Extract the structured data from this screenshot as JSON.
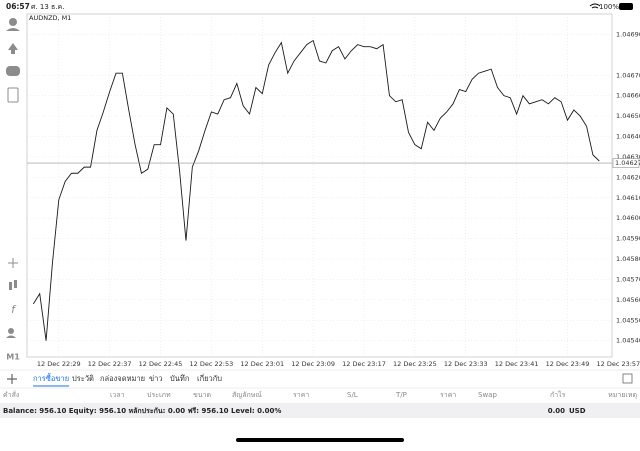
{
  "status_bar": {
    "time": "06:57",
    "date": "ศ. 13 ธ.ค.",
    "battery": "100%"
  },
  "chart_data": {
    "type": "line",
    "title": "AUDNZD, M1",
    "color": "#1a1a1a",
    "grid": true,
    "x": [
      "12 Dec 22:25",
      "12 Dec 22:26",
      "12 Dec 22:27",
      "12 Dec 22:28",
      "12 Dec 22:29",
      "12 Dec 22:30",
      "12 Dec 22:31",
      "12 Dec 22:32",
      "12 Dec 22:33",
      "12 Dec 22:34",
      "12 Dec 22:35",
      "12 Dec 22:36",
      "12 Dec 22:37",
      "12 Dec 22:38",
      "12 Dec 22:39",
      "12 Dec 22:40",
      "12 Dec 22:41",
      "12 Dec 22:42",
      "12 Dec 22:43",
      "12 Dec 22:44",
      "12 Dec 22:45",
      "12 Dec 22:46",
      "12 Dec 22:47",
      "12 Dec 22:48",
      "12 Dec 22:49",
      "12 Dec 22:50",
      "12 Dec 22:51",
      "12 Dec 22:52",
      "12 Dec 22:53",
      "12 Dec 22:54",
      "12 Dec 22:55",
      "12 Dec 22:56",
      "12 Dec 22:57",
      "12 Dec 22:58",
      "12 Dec 22:59",
      "12 Dec 23:00",
      "12 Dec 23:01",
      "12 Dec 23:02",
      "12 Dec 23:03",
      "12 Dec 23:04",
      "12 Dec 23:05",
      "12 Dec 23:06",
      "12 Dec 23:07",
      "12 Dec 23:08",
      "12 Dec 23:09",
      "12 Dec 23:10",
      "12 Dec 23:11",
      "12 Dec 23:12",
      "12 Dec 23:13",
      "12 Dec 23:14",
      "12 Dec 23:15",
      "12 Dec 23:16",
      "12 Dec 23:17",
      "12 Dec 23:18",
      "12 Dec 23:19",
      "12 Dec 23:20",
      "12 Dec 23:21",
      "12 Dec 23:22",
      "12 Dec 23:23",
      "12 Dec 23:24",
      "12 Dec 23:25",
      "12 Dec 23:26",
      "12 Dec 23:27",
      "12 Dec 23:28",
      "12 Dec 23:29",
      "12 Dec 23:30",
      "12 Dec 23:31",
      "12 Dec 23:32",
      "12 Dec 23:33",
      "12 Dec 23:34",
      "12 Dec 23:35",
      "12 Dec 23:36",
      "12 Dec 23:37",
      "12 Dec 23:38",
      "12 Dec 23:39",
      "12 Dec 23:40",
      "12 Dec 23:41",
      "12 Dec 23:42",
      "12 Dec 23:43",
      "12 Dec 23:44",
      "12 Dec 23:45",
      "12 Dec 23:46",
      "12 Dec 23:47",
      "12 Dec 23:48",
      "12 Dec 23:49",
      "12 Dec 23:50",
      "12 Dec 23:51",
      "12 Dec 23:52",
      "12 Dec 23:53",
      "12 Dec 23:54"
    ],
    "values": [
      1.04558,
      1.04563,
      1.0454,
      1.04578,
      1.04609,
      1.04618,
      1.04622,
      1.04622,
      1.04625,
      1.04625,
      1.04643,
      1.04652,
      1.04662,
      1.04671,
      1.04671,
      1.04653,
      1.04636,
      1.04622,
      1.04624,
      1.04636,
      1.04636,
      1.04654,
      1.04651,
      1.04623,
      1.04589,
      1.04625,
      1.04633,
      1.04643,
      1.04652,
      1.04651,
      1.04658,
      1.04659,
      1.04666,
      1.04655,
      1.04651,
      1.04664,
      1.04661,
      1.04675,
      1.04681,
      1.04686,
      1.04671,
      1.04677,
      1.04681,
      1.04685,
      1.04687,
      1.04677,
      1.04676,
      1.04682,
      1.04684,
      1.04678,
      1.04682,
      1.04685,
      1.04684,
      1.04684,
      1.04683,
      1.04685,
      1.0466,
      1.04657,
      1.04658,
      1.04642,
      1.04636,
      1.04634,
      1.04647,
      1.04643,
      1.04649,
      1.04652,
      1.04656,
      1.04663,
      1.04662,
      1.04668,
      1.04671,
      1.04672,
      1.04673,
      1.04664,
      1.0466,
      1.04659,
      1.04651,
      1.0466,
      1.04656,
      1.04657,
      1.04658,
      1.04656,
      1.04659,
      1.04657,
      1.04648,
      1.04653,
      1.0465,
      1.04645,
      1.04631,
      1.04628
    ],
    "xlim": [
      "12 Dec 22:24",
      "12 Dec 23:56"
    ],
    "xticks": [
      "12 Dec 22:29",
      "12 Dec 22:37",
      "12 Dec 22:45",
      "12 Dec 22:53",
      "12 Dec 23:01",
      "12 Dec 23:09",
      "12 Dec 23:17",
      "12 Dec 23:25",
      "12 Dec 23:33",
      "12 Dec 23:41",
      "12 Dec 23:49",
      "12 Dec 23:57"
    ],
    "ylim": [
      1.04532,
      1.047
    ],
    "yticks": [
      {
        "value": 1.0469,
        "label": "1.04690"
      },
      {
        "value": 1.0467,
        "label": "1.04670"
      },
      {
        "value": 1.0466,
        "label": "1.04660"
      },
      {
        "value": 1.0465,
        "label": "1.04650"
      },
      {
        "value": 1.0464,
        "label": "1.04640"
      },
      {
        "value": 1.0463,
        "label": "1.04630"
      },
      {
        "value": 1.0462,
        "label": "1.04620"
      },
      {
        "value": 1.0461,
        "label": "1.04610"
      },
      {
        "value": 1.046,
        "label": "1.04600"
      },
      {
        "value": 1.0459,
        "label": "1.04590"
      },
      {
        "value": 1.0458,
        "label": "1.04580"
      },
      {
        "value": 1.0457,
        "label": "1.04570"
      },
      {
        "value": 1.0456,
        "label": "1.04560"
      },
      {
        "value": 1.0455,
        "label": "1.04550"
      },
      {
        "value": 1.0454,
        "label": "1.04540"
      }
    ],
    "current_price": 1.04627
  },
  "toolbar": {
    "timeframe": "M1"
  },
  "tabs": [
    "การซื้อขาย",
    "ประวัติ",
    "กล่องจดหมาย",
    "ข่าว",
    "บันทึก",
    "เกี่ยวกับ"
  ],
  "table": {
    "headers": [
      "คำสั่ง",
      "เวลา",
      "ประเภท",
      "ขนาด",
      "สัญลักษณ์",
      "ราคา",
      "S/L",
      "T/P",
      "ราคา",
      "Swap",
      "กำไร",
      "หมายเหตุ"
    ]
  },
  "summary": {
    "text": "Balance: 956.10 Equity: 956.10 หลักประกัน: 0.00 ฟรี: 956.10 Level: 0.00%",
    "profit": "0.00",
    "currency": "USD"
  }
}
